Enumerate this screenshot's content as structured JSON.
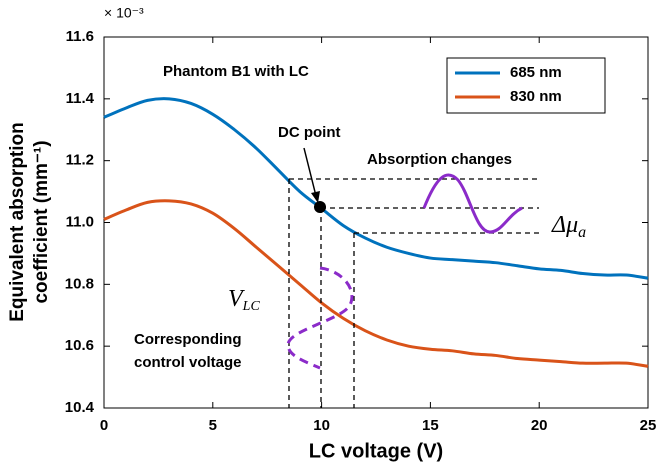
{
  "chart_data": {
    "type": "line",
    "x": [
      0,
      1,
      2,
      3,
      4,
      5,
      6,
      7,
      8,
      9,
      10,
      11,
      12,
      13,
      14,
      15,
      16,
      17,
      18,
      19,
      20,
      21,
      22,
      23,
      24,
      25
    ],
    "series": [
      {
        "name": "685 nm",
        "color": "#0072bd",
        "values": [
          11.34,
          11.37,
          11.395,
          11.4,
          11.385,
          11.35,
          11.3,
          11.24,
          11.17,
          11.1,
          11.045,
          10.99,
          10.95,
          10.92,
          10.9,
          10.885,
          10.88,
          10.875,
          10.87,
          10.86,
          10.85,
          10.845,
          10.835,
          10.83,
          10.83,
          10.82
        ]
      },
      {
        "name": "830 nm",
        "color": "#d95319",
        "values": [
          11.01,
          11.04,
          11.065,
          11.07,
          11.06,
          11.03,
          10.98,
          10.92,
          10.86,
          10.8,
          10.74,
          10.69,
          10.65,
          10.62,
          10.6,
          10.59,
          10.585,
          10.575,
          10.57,
          10.56,
          10.555,
          10.55,
          10.545,
          10.545,
          10.545,
          10.535
        ]
      }
    ],
    "xlim": [
      0,
      25
    ],
    "xticks": [
      0,
      5,
      10,
      15,
      20,
      25
    ],
    "ylim": [
      10.4,
      11.6
    ],
    "yticks": [
      10.4,
      10.6,
      10.8,
      {
        "value": 11,
        "label": "11.0"
      },
      11.2,
      11.4,
      11.6
    ],
    "y_multiplier": "× 10⁻³",
    "x_label": "LC voltage (V)",
    "y_label": [
      "Equivalent absorption",
      "coefficient (mm⁻¹)"
    ],
    "legend": "upper right",
    "annotations": {
      "phantom": "Phantom B1 with LC",
      "dc_point": "DC point",
      "absorption_changes": "Absorption changes",
      "delta_mu": {
        "text": "Δμ",
        "sub": "a"
      },
      "v_lc": {
        "text": "V",
        "sub": "LC"
      },
      "control_voltage": [
        "Corresponding",
        "control voltage"
      ]
    }
  }
}
